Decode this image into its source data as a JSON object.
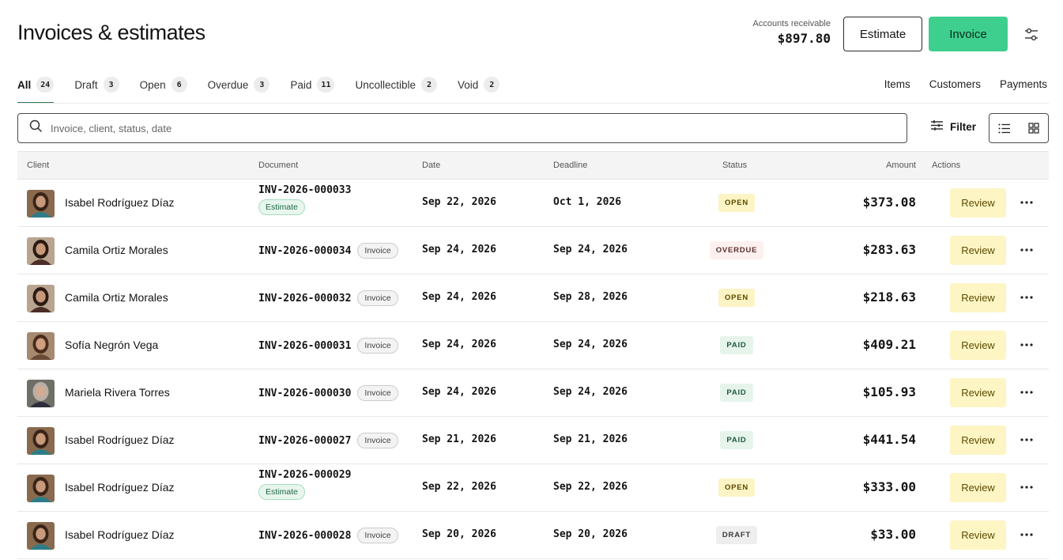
{
  "header": {
    "title": "Invoices & estimates",
    "ar_label": "Accounts receivable",
    "ar_value": "$897.80",
    "estimate_button": "Estimate",
    "invoice_button": "Invoice"
  },
  "tabs": [
    {
      "label": "All",
      "count": "24",
      "active": true
    },
    {
      "label": "Draft",
      "count": "3"
    },
    {
      "label": "Open",
      "count": "6"
    },
    {
      "label": "Overdue",
      "count": "3"
    },
    {
      "label": "Paid",
      "count": "11"
    },
    {
      "label": "Uncollectible",
      "count": "2"
    },
    {
      "label": "Void",
      "count": "2"
    }
  ],
  "right_links": {
    "items": "Items",
    "customers": "Customers",
    "payments": "Payments"
  },
  "search": {
    "placeholder": "Invoice, client, status, date"
  },
  "toolbar": {
    "filter_label": "Filter"
  },
  "table": {
    "columns": {
      "client": "Client",
      "document": "Document",
      "date": "Date",
      "deadline": "Deadline",
      "status": "Status",
      "amount": "Amount",
      "actions": "Actions"
    },
    "review_label": "Review",
    "rows": [
      {
        "client": "Isabel Rodríguez Díaz",
        "document": "INV-2026-000033",
        "type": "Estimate",
        "date": "Sep 22, 2026",
        "deadline": "Oct 1, 2026",
        "status": "OPEN",
        "amount": "$373.08"
      },
      {
        "client": "Camila Ortiz Morales",
        "document": "INV-2026-000034",
        "type": "Invoice",
        "date": "Sep 24, 2026",
        "deadline": "Sep 24, 2026",
        "status": "OVERDUE",
        "amount": "$283.63"
      },
      {
        "client": "Camila Ortiz Morales",
        "document": "INV-2026-000032",
        "type": "Invoice",
        "date": "Sep 24, 2026",
        "deadline": "Sep 28, 2026",
        "status": "OPEN",
        "amount": "$218.63"
      },
      {
        "client": "Sofía Negrón Vega",
        "document": "INV-2026-000031",
        "type": "Invoice",
        "date": "Sep 24, 2026",
        "deadline": "Sep 24, 2026",
        "status": "PAID",
        "amount": "$409.21"
      },
      {
        "client": "Mariela Rivera Torres",
        "document": "INV-2026-000030",
        "type": "Invoice",
        "date": "Sep 24, 2026",
        "deadline": "Sep 24, 2026",
        "status": "PAID",
        "amount": "$105.93"
      },
      {
        "client": "Isabel Rodríguez Díaz",
        "document": "INV-2026-000027",
        "type": "Invoice",
        "date": "Sep 21, 2026",
        "deadline": "Sep 21, 2026",
        "status": "PAID",
        "amount": "$441.54"
      },
      {
        "client": "Isabel Rodríguez Díaz",
        "document": "INV-2026-000029",
        "type": "Estimate",
        "date": "Sep 22, 2026",
        "deadline": "Sep 22, 2026",
        "status": "OPEN",
        "amount": "$333.00"
      },
      {
        "client": "Isabel Rodríguez Díaz",
        "document": "INV-2026-000028",
        "type": "Invoice",
        "date": "Sep 20, 2026",
        "deadline": "Sep 20, 2026",
        "status": "DRAFT",
        "amount": "$33.00"
      }
    ]
  },
  "colors": {
    "accent_green": "#3ecf8e",
    "tab_underline": "#2a7a55",
    "status_open": "#fcf4c4",
    "status_paid": "#e6f4ec",
    "status_overdue": "#fdf0ef",
    "status_draft": "#eeeeee",
    "review_button": "#fdf5c4"
  }
}
